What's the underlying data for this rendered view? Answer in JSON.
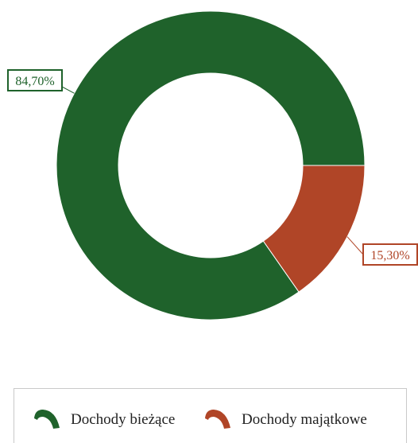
{
  "chart_data": {
    "type": "pie",
    "variant": "donut",
    "title": "",
    "categories": [
      "Dochody bieżące",
      "Dochody majątkowe"
    ],
    "values": [
      84.7,
      15.3
    ],
    "labels": [
      "84,70%",
      "15,30%"
    ],
    "colors": [
      "#1f622b",
      "#b04527"
    ],
    "legend": "bottom"
  }
}
